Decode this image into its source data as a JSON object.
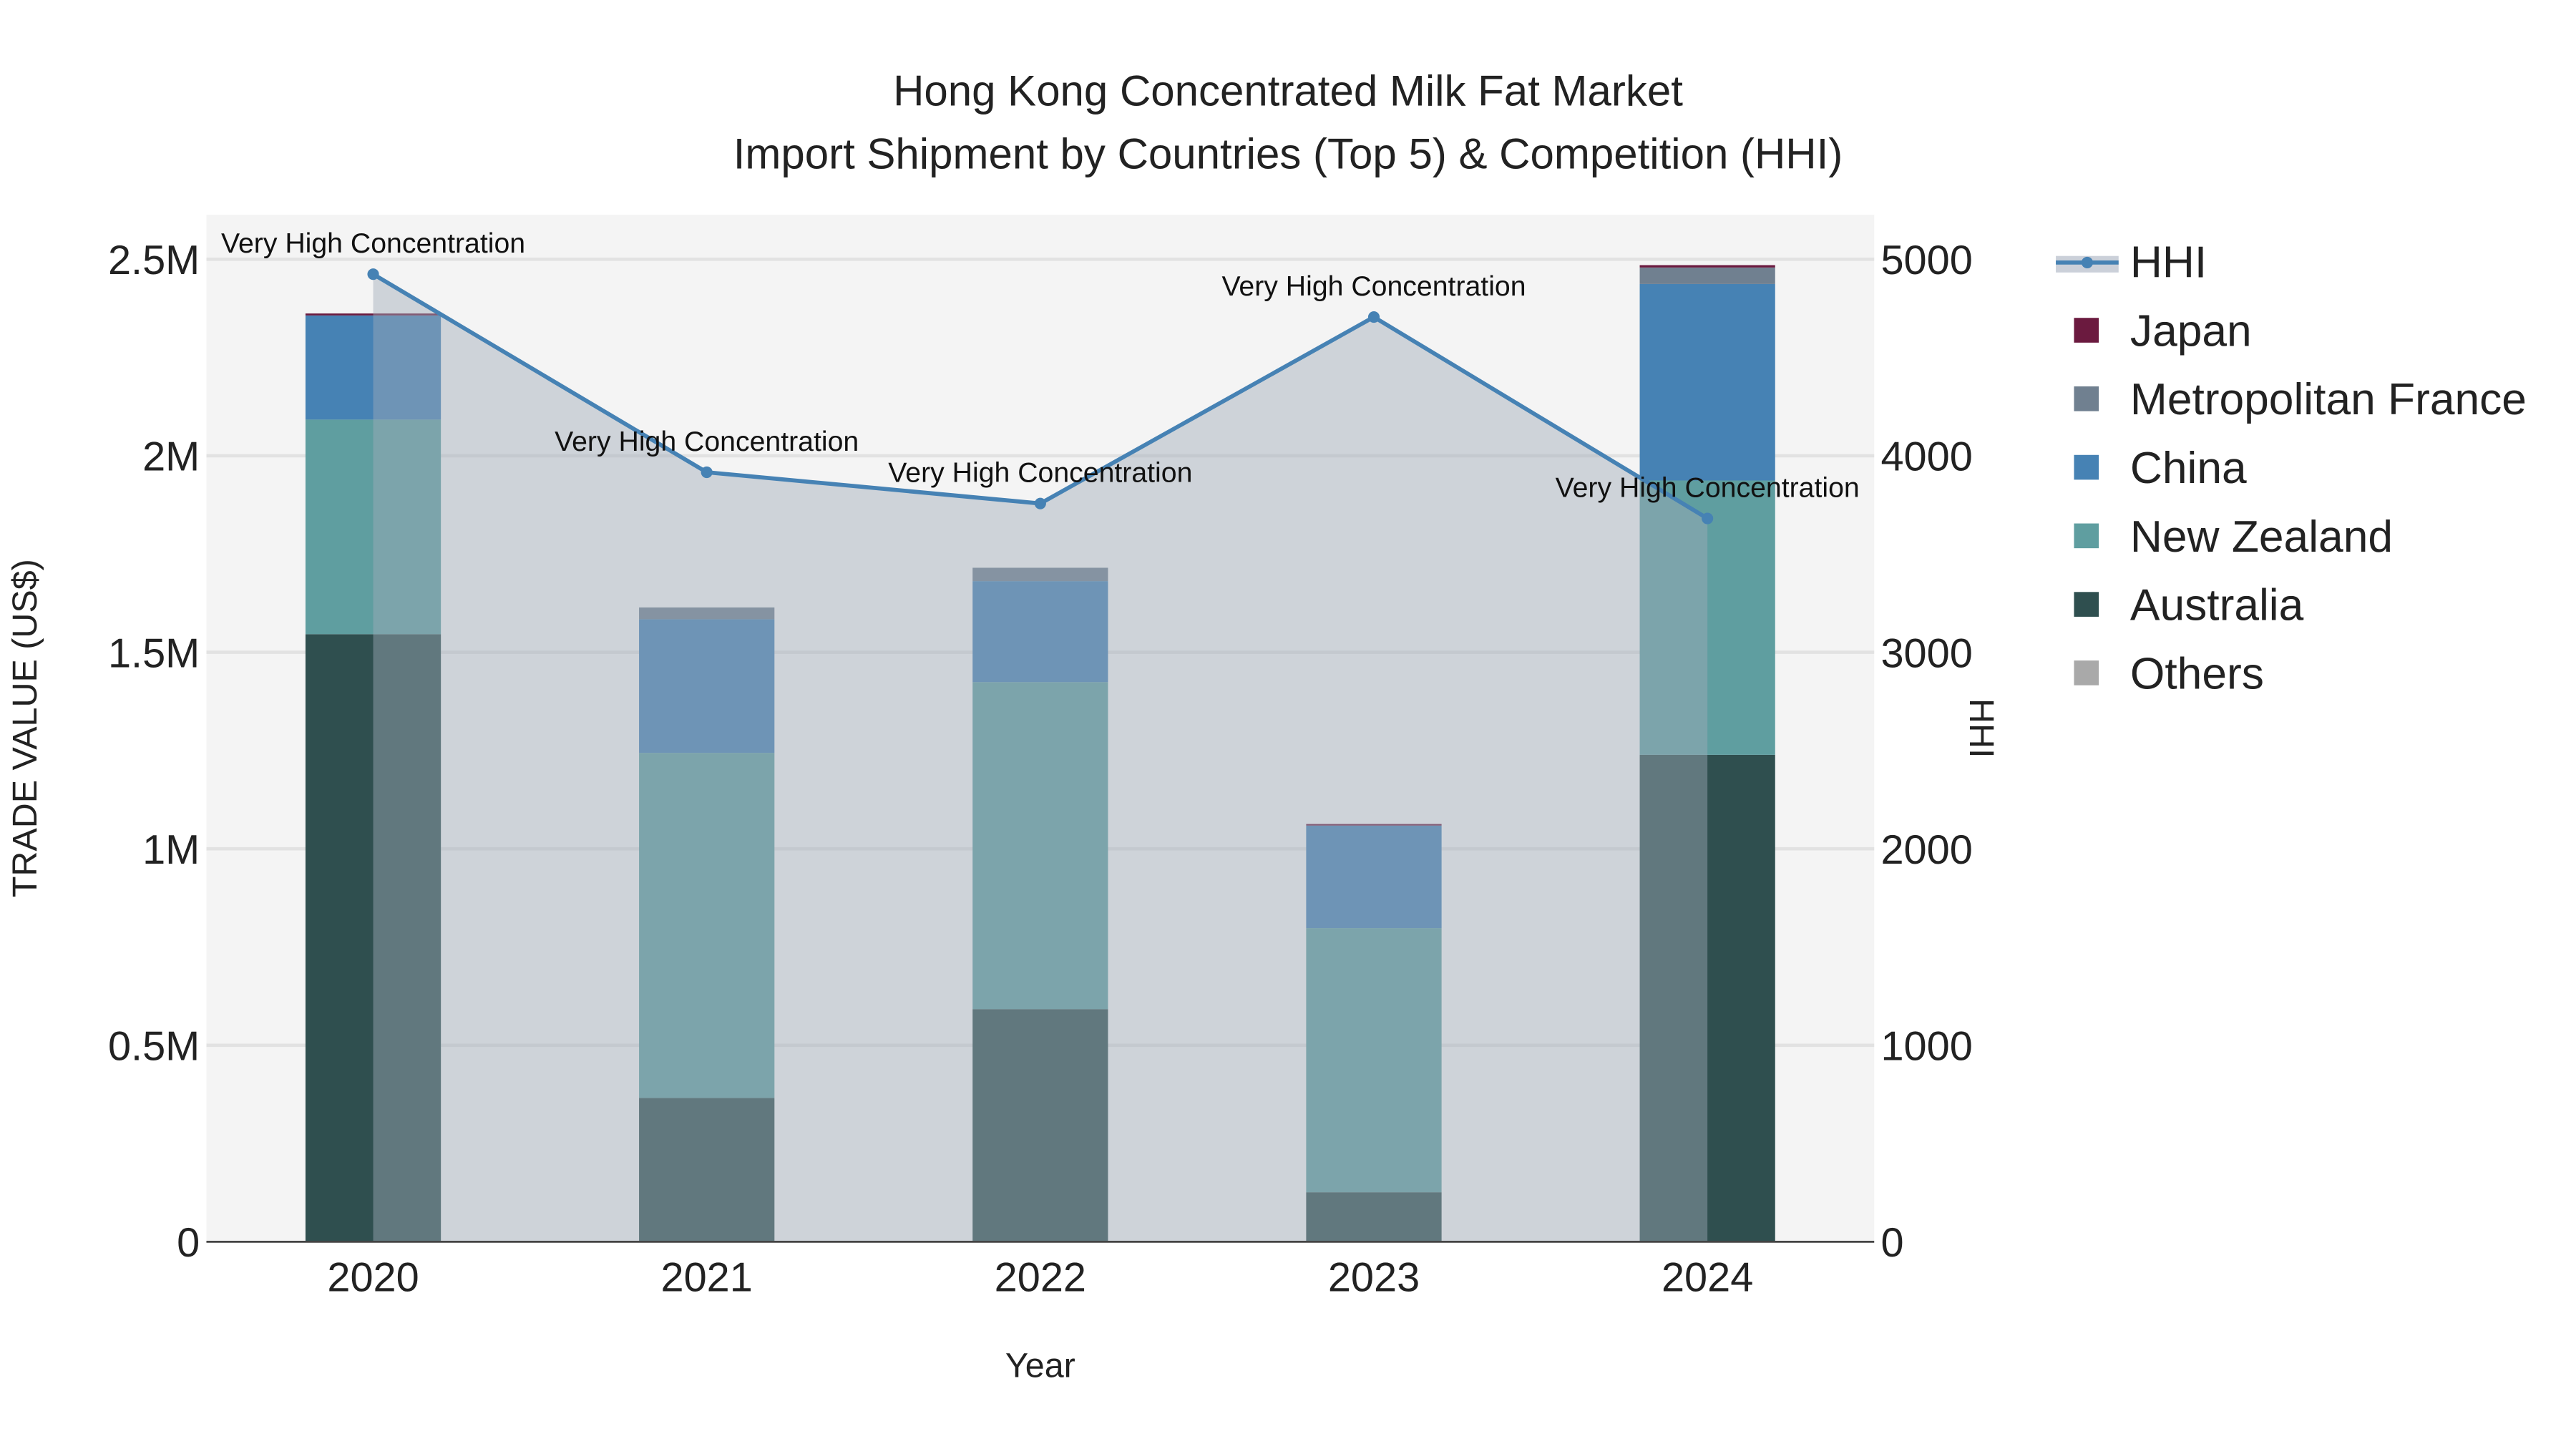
{
  "chart_data": {
    "type": "bar",
    "title": "Hong Kong Concentrated Milk Fat Market",
    "subtitle": "Import Shipment by Countries (Top 5) & Competition (HHI)",
    "xlabel": "Year",
    "ylabel": "TRADE VALUE (US$)",
    "y2label": "HHI",
    "categories": [
      "2020",
      "2021",
      "2022",
      "2023",
      "2024"
    ],
    "ylim": [
      0,
      2600000
    ],
    "y2lim": [
      0,
      5200
    ],
    "yticks": [
      0,
      500000,
      1000000,
      1500000,
      2000000,
      2500000
    ],
    "ytick_labels": [
      "0",
      "0.5M",
      "1M",
      "1.5M",
      "2M",
      "2.5M"
    ],
    "y2ticks": [
      0,
      1000,
      2000,
      3000,
      4000,
      5000
    ],
    "y2tick_labels": [
      "0",
      "1000",
      "2000",
      "3000",
      "4000",
      "5000"
    ],
    "series": [
      {
        "name": "Australia",
        "color": "#2f4f4f",
        "values": [
          1546000,
          366000,
          592000,
          126000,
          1239000
        ]
      },
      {
        "name": "New Zealand",
        "color": "#5f9ea0",
        "values": [
          546000,
          878000,
          832000,
          672000,
          698000
        ]
      },
      {
        "name": "China",
        "color": "#4682b4",
        "values": [
          265000,
          340000,
          257000,
          261000,
          500000
        ]
      },
      {
        "name": "Metropolitan France",
        "color": "#708090",
        "values": [
          0,
          30000,
          34000,
          0,
          42000
        ]
      },
      {
        "name": "Japan",
        "color": "#6b1a3f",
        "values": [
          5000,
          0,
          0,
          4000,
          6000
        ]
      },
      {
        "name": "Others",
        "color": "#a9a9a9",
        "values": [
          0,
          0,
          0,
          0,
          0
        ]
      }
    ],
    "hhi": {
      "name": "HHI",
      "color": "#4682b4",
      "values": [
        4924,
        3916,
        3757,
        4706,
        3681
      ]
    },
    "annotations": [
      "Very High Concentration",
      "Very High Concentration",
      "Very High Concentration",
      "Very High Concentration",
      "Very High Concentration"
    ],
    "legend_order": [
      "HHI",
      "Japan",
      "Metropolitan France",
      "China",
      "New Zealand",
      "Australia",
      "Others"
    ],
    "legend_position": "right",
    "grid": true
  }
}
